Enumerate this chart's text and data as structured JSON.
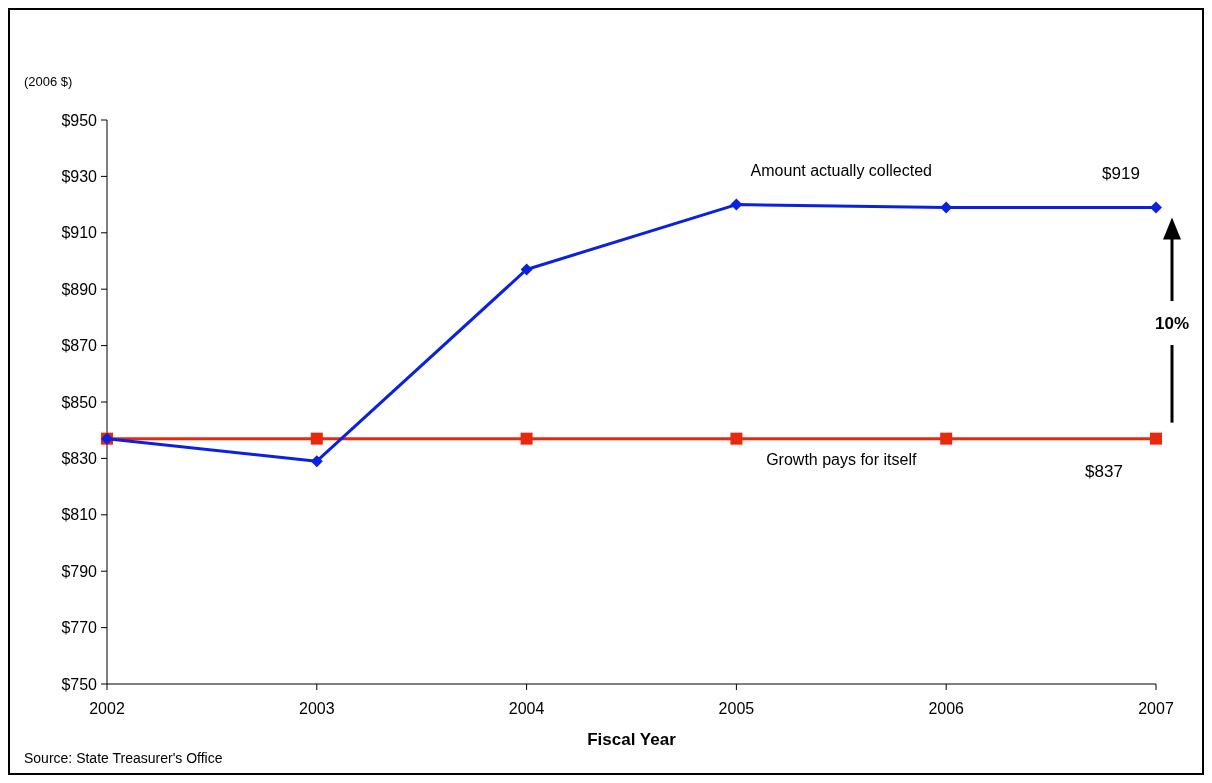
{
  "chart_data": {
    "type": "line",
    "ylabel": "(2006 $)",
    "xlabel": "Fiscal Year",
    "x": [
      2002,
      2003,
      2004,
      2005,
      2006,
      2007
    ],
    "xlim": [
      2002,
      2007
    ],
    "xticks": [
      2002,
      2003,
      2004,
      2005,
      2006,
      2007
    ],
    "ylim": [
      750,
      950
    ],
    "yticks": [
      {
        "value": 750,
        "label": "$750"
      },
      {
        "value": 770,
        "label": "$770"
      },
      {
        "value": 790,
        "label": "$790"
      },
      {
        "value": 810,
        "label": "$810"
      },
      {
        "value": 830,
        "label": "$830"
      },
      {
        "value": 850,
        "label": "$850"
      },
      {
        "value": 870,
        "label": "$870"
      },
      {
        "value": 890,
        "label": "$890"
      },
      {
        "value": 910,
        "label": "$910"
      },
      {
        "value": 930,
        "label": "$930"
      },
      {
        "value": 950,
        "label": "$950"
      }
    ],
    "series": [
      {
        "name": "Amount actually collected",
        "color": "#0a22e0",
        "marker": "diamond",
        "values": [
          837,
          829,
          897,
          920,
          919,
          919
        ]
      },
      {
        "name": "Growth pays for itself",
        "color": "#e8290b",
        "marker": "square",
        "values": [
          837,
          837,
          837,
          837,
          837,
          837
        ]
      }
    ],
    "grid": false,
    "annotations": [
      {
        "text": "$919",
        "x": 2007,
        "y": 919
      },
      {
        "text": "$837",
        "x": 2007,
        "y": 837
      },
      "10%",
      "Source: State Treasurer's Office"
    ]
  }
}
